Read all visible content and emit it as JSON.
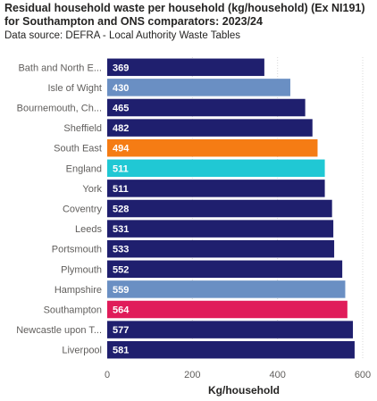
{
  "chart_data": {
    "type": "bar",
    "orientation": "horizontal",
    "title": "Residual household waste per household (kg/household) (Ex NI191) for Southampton and ONS comparators: 2023/24",
    "subtitle": "Data source: DEFRA - Local Authority Waste Tables",
    "xlabel": "Kg/household",
    "ylabel": "",
    "xlim": [
      0,
      600
    ],
    "xticks": [
      "0",
      "200",
      "400",
      "600"
    ],
    "grid": true,
    "categories": [
      "Bath and North E...",
      "Isle of Wight",
      "Bournemouth, Ch...",
      "Sheffield",
      "South East",
      "England",
      "York",
      "Coventry",
      "Leeds",
      "Portsmouth",
      "Plymouth",
      "Hampshire",
      "Southampton",
      "Newcastle upon T...",
      "Liverpool"
    ],
    "values": [
      369,
      430,
      465,
      482,
      494,
      511,
      511,
      528,
      531,
      533,
      552,
      559,
      564,
      577,
      581
    ],
    "colors": [
      "#1f1f6e",
      "#6a8fc3",
      "#1f1f6e",
      "#1f1f6e",
      "#f57c14",
      "#20c8d4",
      "#1f1f6e",
      "#1f1f6e",
      "#1f1f6e",
      "#1f1f6e",
      "#1f1f6e",
      "#6a8fc3",
      "#e01c5a",
      "#1f1f6e",
      "#1f1f6e"
    ]
  }
}
